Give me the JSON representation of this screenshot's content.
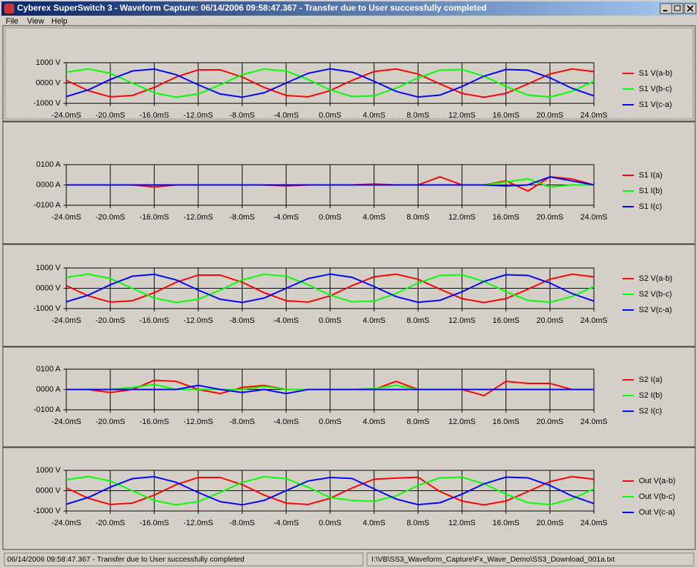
{
  "window": {
    "title": "Cyberex SuperSwitch 3 - Waveform Capture:  06/14/2006  09:58:47.367 - Transfer due to User successfully completed",
    "menu": [
      "File",
      "View",
      "Help"
    ],
    "status": [
      "06/14/2006  09:58:47.367 - Transfer due to User successfully completed",
      "I:\\VB\\SS3_Waveform_Capture\\Fx_Wave_Demo\\SS3_Download_001a.txt"
    ]
  },
  "chart_data": [
    {
      "type": "line",
      "x": [
        -24,
        -22,
        -20,
        -18,
        -16,
        -14,
        -12,
        -10,
        -8,
        -6,
        -4,
        -2,
        0,
        2,
        4,
        6,
        8,
        10,
        12,
        14,
        16,
        18,
        20,
        22,
        24
      ],
      "xlim": [
        -24,
        24
      ],
      "xticks": [
        {
          "value": -24,
          "label": "-24.0mS"
        },
        {
          "value": -20,
          "label": "-20.0mS"
        },
        {
          "value": -16,
          "label": "-16.0mS"
        },
        {
          "value": -12,
          "label": "-12.0mS"
        },
        {
          "value": -8,
          "label": "-8.0mS"
        },
        {
          "value": -4,
          "label": "-4.0mS"
        },
        {
          "value": 0,
          "label": "0.0mS"
        },
        {
          "value": 4,
          "label": "4.0mS"
        },
        {
          "value": 8,
          "label": "8.0mS"
        },
        {
          "value": 12,
          "label": "12.0mS"
        },
        {
          "value": 16,
          "label": "16.0mS"
        },
        {
          "value": 20,
          "label": "20.0mS"
        },
        {
          "value": 24,
          "label": "24.0mS"
        }
      ],
      "ylim": [
        -1000,
        1000
      ],
      "yticks": [
        {
          "value": 1000,
          "label": "1000 V"
        },
        {
          "value": 0,
          "label": "0000 V"
        },
        {
          "value": -1000,
          "label": "-1000 V"
        }
      ],
      "grid": true,
      "series": [
        {
          "name": "S1 V(a-b)",
          "color": "#ff0000",
          "values": [
            131,
            -375,
            -678,
            -613,
            -216,
            298,
            651,
            651,
            298,
            -216,
            -613,
            -678,
            -375,
            131,
            566,
            694,
            446,
            -44,
            -510,
            -700,
            -510,
            -44,
            446,
            694,
            566
          ]
        },
        {
          "name": "S1 V(b-c)",
          "color": "#00ff00",
          "values": [
            539,
            699,
            479,
            0,
            -479,
            -699,
            -539,
            -88,
            411,
            688,
            591,
            174,
            -337,
            -666,
            -633,
            -258,
            258,
            633,
            666,
            337,
            -174,
            -591,
            -688,
            -411,
            88
          ]
        },
        {
          "name": "S1 V(c-a)",
          "color": "#0000ff",
          "values": [
            -666,
            -337,
            174,
            591,
            688,
            411,
            -88,
            -539,
            -699,
            -479,
            0,
            479,
            699,
            539,
            88,
            -411,
            -688,
            -591,
            -174,
            337,
            666,
            633,
            258,
            -258,
            -633
          ]
        }
      ]
    },
    {
      "type": "line",
      "x": [
        -24,
        -22,
        -20,
        -18,
        -16,
        -14,
        -12,
        -10,
        -8,
        -6,
        -4,
        -2,
        0,
        2,
        4,
        6,
        8,
        10,
        12,
        14,
        16,
        18,
        20,
        22,
        24
      ],
      "xlim": [
        -24,
        24
      ],
      "xticks": [
        {
          "value": -24,
          "label": "-24.0mS"
        },
        {
          "value": -20,
          "label": "-20.0mS"
        },
        {
          "value": -16,
          "label": "-16.0mS"
        },
        {
          "value": -12,
          "label": "-12.0mS"
        },
        {
          "value": -8,
          "label": "-8.0mS"
        },
        {
          "value": -4,
          "label": "-4.0mS"
        },
        {
          "value": 0,
          "label": "0.0mS"
        },
        {
          "value": 4,
          "label": "4.0mS"
        },
        {
          "value": 8,
          "label": "8.0mS"
        },
        {
          "value": 12,
          "label": "12.0mS"
        },
        {
          "value": 16,
          "label": "16.0mS"
        },
        {
          "value": 20,
          "label": "20.0mS"
        },
        {
          "value": 24,
          "label": "24.0mS"
        }
      ],
      "ylim": [
        -100,
        100
      ],
      "yticks": [
        {
          "value": 100,
          "label": "0100 A"
        },
        {
          "value": 0,
          "label": "0000 A"
        },
        {
          "value": -100,
          "label": "-0100 A"
        }
      ],
      "grid": true,
      "series": [
        {
          "name": "S1 I(a)",
          "color": "#ff0000",
          "values": [
            0,
            0,
            0,
            0,
            -10,
            0,
            0,
            0,
            0,
            0,
            -5,
            0,
            0,
            0,
            5,
            0,
            0,
            40,
            0,
            0,
            20,
            -30,
            40,
            30,
            0
          ]
        },
        {
          "name": "S1 I(b)",
          "color": "#00ff00",
          "values": [
            0,
            0,
            0,
            0,
            0,
            0,
            0,
            0,
            0,
            0,
            0,
            0,
            0,
            0,
            0,
            0,
            0,
            0,
            0,
            0,
            15,
            30,
            -10,
            0,
            0
          ]
        },
        {
          "name": "S1 I(c)",
          "color": "#0000ff",
          "values": [
            0,
            0,
            0,
            0,
            0,
            0,
            0,
            0,
            0,
            0,
            0,
            0,
            0,
            0,
            0,
            0,
            0,
            0,
            0,
            0,
            -5,
            0,
            40,
            20,
            0
          ]
        }
      ]
    },
    {
      "type": "line",
      "x": [
        -24,
        -22,
        -20,
        -18,
        -16,
        -14,
        -12,
        -10,
        -8,
        -6,
        -4,
        -2,
        0,
        2,
        4,
        6,
        8,
        10,
        12,
        14,
        16,
        18,
        20,
        22,
        24
      ],
      "xlim": [
        -24,
        24
      ],
      "xticks": [
        {
          "value": -24,
          "label": "-24.0mS"
        },
        {
          "value": -20,
          "label": "-20.0mS"
        },
        {
          "value": -16,
          "label": "-16.0mS"
        },
        {
          "value": -12,
          "label": "-12.0mS"
        },
        {
          "value": -8,
          "label": "-8.0mS"
        },
        {
          "value": -4,
          "label": "-4.0mS"
        },
        {
          "value": 0,
          "label": "0.0mS"
        },
        {
          "value": 4,
          "label": "4.0mS"
        },
        {
          "value": 8,
          "label": "8.0mS"
        },
        {
          "value": 12,
          "label": "12.0mS"
        },
        {
          "value": 16,
          "label": "16.0mS"
        },
        {
          "value": 20,
          "label": "20.0mS"
        },
        {
          "value": 24,
          "label": "24.0mS"
        }
      ],
      "ylim": [
        -1000,
        1000
      ],
      "yticks": [
        {
          "value": 1000,
          "label": "1000 V"
        },
        {
          "value": 0,
          "label": "0000 V"
        },
        {
          "value": -1000,
          "label": "-1000 V"
        }
      ],
      "grid": true,
      "series": [
        {
          "name": "S2 V(a-b)",
          "color": "#ff0000",
          "values": [
            131,
            -375,
            -678,
            -613,
            -216,
            298,
            651,
            651,
            298,
            -216,
            -613,
            -678,
            -375,
            131,
            566,
            694,
            446,
            -44,
            -510,
            -700,
            -510,
            -44,
            446,
            694,
            566
          ]
        },
        {
          "name": "S2 V(b-c)",
          "color": "#00ff00",
          "values": [
            539,
            699,
            479,
            0,
            -479,
            -699,
            -539,
            -88,
            411,
            688,
            591,
            174,
            -337,
            -666,
            -633,
            -258,
            258,
            633,
            666,
            337,
            -174,
            -591,
            -688,
            -411,
            88
          ]
        },
        {
          "name": "S2 V(c-a)",
          "color": "#0000ff",
          "values": [
            -666,
            -337,
            174,
            591,
            688,
            411,
            -88,
            -539,
            -699,
            -479,
            0,
            479,
            699,
            539,
            88,
            -411,
            -688,
            -591,
            -174,
            337,
            666,
            633,
            258,
            -258,
            -633
          ]
        }
      ]
    },
    {
      "type": "line",
      "x": [
        -24,
        -22,
        -20,
        -18,
        -16,
        -14,
        -12,
        -10,
        -8,
        -6,
        -4,
        -2,
        0,
        2,
        4,
        6,
        8,
        10,
        12,
        14,
        16,
        18,
        20,
        22,
        24
      ],
      "xlim": [
        -24,
        24
      ],
      "xticks": [
        {
          "value": -24,
          "label": "-24.0mS"
        },
        {
          "value": -20,
          "label": "-20.0mS"
        },
        {
          "value": -16,
          "label": "-16.0mS"
        },
        {
          "value": -12,
          "label": "-12.0mS"
        },
        {
          "value": -8,
          "label": "-8.0mS"
        },
        {
          "value": -4,
          "label": "-4.0mS"
        },
        {
          "value": 0,
          "label": "0.0mS"
        },
        {
          "value": 4,
          "label": "4.0mS"
        },
        {
          "value": 8,
          "label": "8.0mS"
        },
        {
          "value": 12,
          "label": "12.0mS"
        },
        {
          "value": 16,
          "label": "16.0mS"
        },
        {
          "value": 20,
          "label": "20.0mS"
        },
        {
          "value": 24,
          "label": "24.0mS"
        }
      ],
      "ylim": [
        -100,
        100
      ],
      "yticks": [
        {
          "value": 100,
          "label": "0100 A"
        },
        {
          "value": 0,
          "label": "0000 A"
        },
        {
          "value": -100,
          "label": "-0100 A"
        }
      ],
      "grid": true,
      "series": [
        {
          "name": "S2 I(a)",
          "color": "#ff0000",
          "values": [
            0,
            0,
            -15,
            0,
            45,
            40,
            0,
            -20,
            10,
            20,
            0,
            0,
            0,
            0,
            0,
            40,
            0,
            0,
            0,
            -30,
            40,
            30,
            30,
            0,
            0
          ]
        },
        {
          "name": "S2 I(b)",
          "color": "#00ff00",
          "values": [
            0,
            0,
            0,
            10,
            25,
            0,
            0,
            0,
            0,
            15,
            0,
            0,
            0,
            0,
            5,
            20,
            0,
            0,
            0,
            0,
            0,
            0,
            0,
            0,
            0
          ]
        },
        {
          "name": "S2 I(c)",
          "color": "#0000ff",
          "values": [
            0,
            0,
            0,
            0,
            0,
            0,
            20,
            0,
            -15,
            0,
            -20,
            0,
            0,
            0,
            0,
            0,
            0,
            0,
            0,
            0,
            0,
            0,
            0,
            0,
            0
          ]
        }
      ]
    },
    {
      "type": "line",
      "x": [
        -24,
        -22,
        -20,
        -18,
        -16,
        -14,
        -12,
        -10,
        -8,
        -6,
        -4,
        -2,
        0,
        2,
        4,
        6,
        8,
        10,
        12,
        14,
        16,
        18,
        20,
        22,
        24
      ],
      "xlim": [
        -24,
        24
      ],
      "xticks": [
        {
          "value": -24,
          "label": "-24.0mS"
        },
        {
          "value": -20,
          "label": "-20.0mS"
        },
        {
          "value": -16,
          "label": "-16.0mS"
        },
        {
          "value": -12,
          "label": "-12.0mS"
        },
        {
          "value": -8,
          "label": "-8.0mS"
        },
        {
          "value": -4,
          "label": "-4.0mS"
        },
        {
          "value": 0,
          "label": "0.0mS"
        },
        {
          "value": 4,
          "label": "4.0mS"
        },
        {
          "value": 8,
          "label": "8.0mS"
        },
        {
          "value": 12,
          "label": "12.0mS"
        },
        {
          "value": 16,
          "label": "16.0mS"
        },
        {
          "value": 20,
          "label": "20.0mS"
        },
        {
          "value": 24,
          "label": "24.0mS"
        }
      ],
      "ylim": [
        -1000,
        1000
      ],
      "yticks": [
        {
          "value": 1000,
          "label": "1000 V"
        },
        {
          "value": 0,
          "label": "0000 V"
        },
        {
          "value": -1000,
          "label": "-1000 V"
        }
      ],
      "grid": true,
      "series": [
        {
          "name": "Out V(a-b)",
          "color": "#ff0000",
          "values": [
            131,
            -375,
            -678,
            -613,
            -216,
            298,
            651,
            651,
            298,
            -216,
            -613,
            -678,
            -375,
            131,
            566,
            620,
            660,
            -44,
            -510,
            -700,
            -510,
            -44,
            446,
            694,
            566
          ]
        },
        {
          "name": "Out V(b-c)",
          "color": "#00ff00",
          "values": [
            539,
            699,
            479,
            0,
            -479,
            -699,
            -539,
            -88,
            411,
            688,
            591,
            174,
            -337,
            -480,
            -520,
            -258,
            258,
            633,
            666,
            337,
            -174,
            -591,
            -688,
            -411,
            88
          ]
        },
        {
          "name": "Out V(c-a)",
          "color": "#0000ff",
          "values": [
            -666,
            -337,
            174,
            591,
            688,
            411,
            -88,
            -539,
            -699,
            -479,
            0,
            479,
            650,
            600,
            88,
            -411,
            -688,
            -591,
            -174,
            337,
            666,
            633,
            258,
            -258,
            -633
          ]
        }
      ]
    }
  ]
}
